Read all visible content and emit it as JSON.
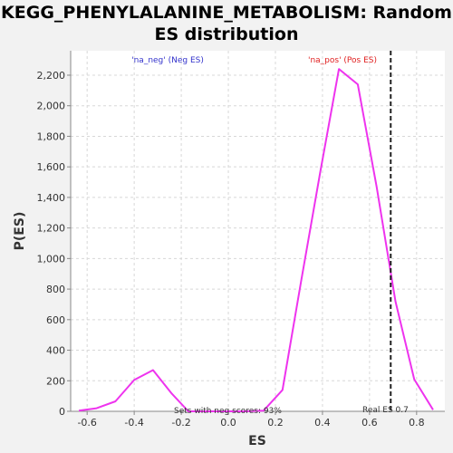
{
  "chart_data": {
    "type": "line",
    "title_line1": "KEGG_PHENYLALANINE_METABOLISM: Random",
    "title_line2": "ES distribution",
    "xlabel": "ES",
    "ylabel": "P(ES)",
    "xlim": [
      -0.67,
      0.92
    ],
    "ylim": [
      0,
      2360
    ],
    "x_ticks": [
      -0.6,
      -0.4,
      -0.2,
      0.0,
      0.2,
      0.4,
      0.6,
      0.8
    ],
    "x_tick_labels": [
      "-0.6",
      "-0.4",
      "-0.2",
      "0.0",
      "0.2",
      "0.4",
      "0.6",
      "0.8"
    ],
    "y_ticks": [
      0,
      200,
      400,
      600,
      800,
      1000,
      1200,
      1400,
      1600,
      1800,
      2000,
      2200
    ],
    "y_tick_labels": [
      "0",
      "200",
      "400",
      "600",
      "800",
      "1,000",
      "1,200",
      "1,400",
      "1,600",
      "1,800",
      "2,000",
      "2,200"
    ],
    "grid": true,
    "series": [
      {
        "color": "#ee33ee",
        "x": [
          -0.635,
          -0.56,
          -0.48,
          -0.4,
          -0.32,
          -0.24,
          -0.17,
          -0.09,
          -0.01,
          0.07,
          0.15,
          0.23,
          0.31,
          0.39,
          0.47,
          0.55,
          0.63,
          0.71,
          0.79,
          0.87
        ],
        "y": [
          5,
          20,
          65,
          205,
          270,
          115,
          0,
          0,
          0,
          0,
          5,
          140,
          860,
          1560,
          2240,
          2140,
          1470,
          720,
          210,
          10
        ]
      }
    ],
    "real_es": {
      "x": 0.69,
      "label": "Real ES 0.7"
    },
    "annotations": {
      "neg": "'na_neg' (Neg ES)",
      "pos": "'na_pos' (Pos ES)",
      "sets": "Sets with neg scores: 93%"
    },
    "colors": {
      "neg": "#3333cc",
      "pos": "#e02020",
      "line": "#ee33ee",
      "real_es": "#222222"
    }
  }
}
